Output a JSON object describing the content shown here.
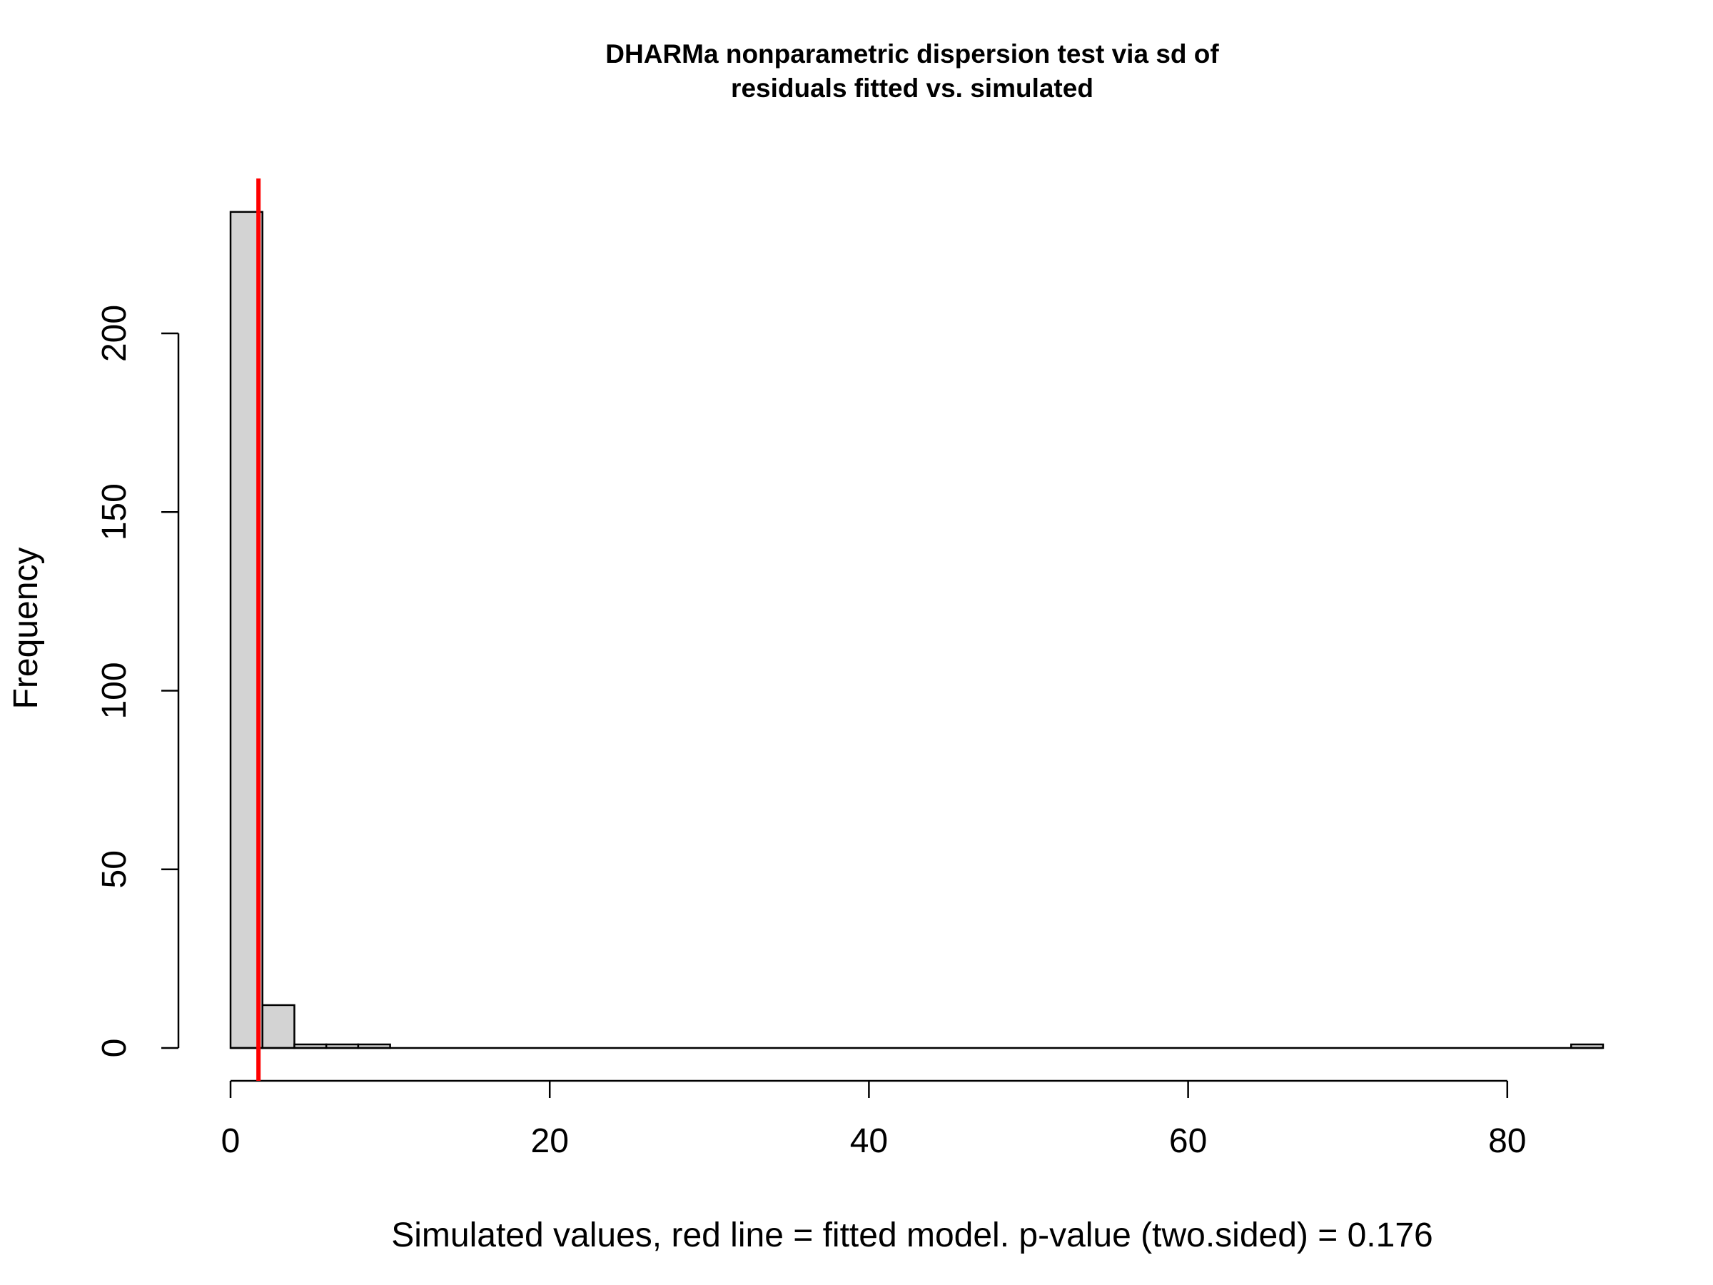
{
  "chart_data": {
    "type": "bar",
    "subtype": "histogram",
    "title_lines": [
      "DHARMa nonparametric dispersion test via sd of",
      "residuals fitted vs. simulated"
    ],
    "xlabel": "Simulated values, red line = fitted model. p-value (two.sided) = 0.176",
    "ylabel": "Frequency",
    "xlim": [
      0,
      86
    ],
    "ylim": [
      0,
      235
    ],
    "x_ticks": [
      0,
      20,
      40,
      60,
      80
    ],
    "y_ticks": [
      0,
      50,
      100,
      150,
      200
    ],
    "bin_width": 2,
    "bins": [
      {
        "x0": 0,
        "x1": 2,
        "count": 234
      },
      {
        "x0": 2,
        "x1": 4,
        "count": 12
      },
      {
        "x0": 4,
        "x1": 6,
        "count": 1
      },
      {
        "x0": 6,
        "x1": 8,
        "count": 1
      },
      {
        "x0": 8,
        "x1": 10,
        "count": 1
      },
      {
        "x0": 84,
        "x1": 86,
        "count": 1
      }
    ],
    "reference_line": {
      "x": 1.75,
      "color": "#ff0000"
    },
    "bar_fill": "#d3d3d3",
    "bar_stroke": "#000000",
    "grid": false,
    "legend": "none"
  }
}
